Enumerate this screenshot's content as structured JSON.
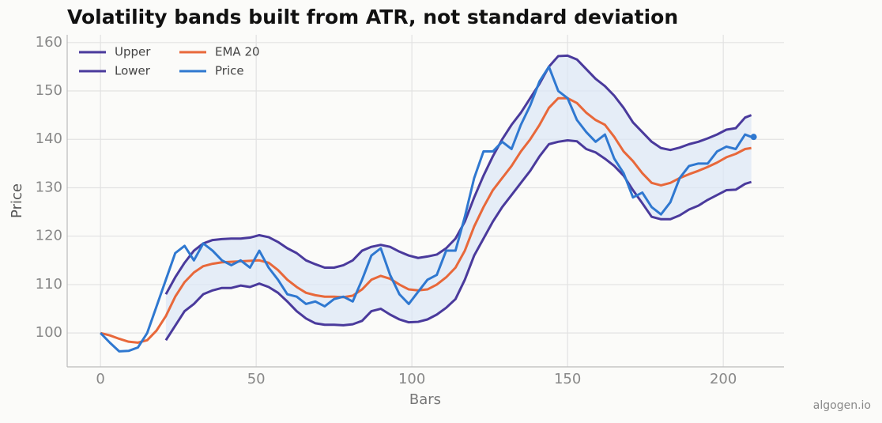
{
  "chart_data": {
    "type": "line",
    "title": "Volatility bands built from ATR, not standard deviation",
    "x_label": "Bars",
    "y_label": "Price",
    "watermark": "algogen.io",
    "xlim": [
      -10.7,
      219.5
    ],
    "ylim": [
      93,
      161.6
    ],
    "xticks": [
      0,
      50,
      100,
      150,
      200
    ],
    "yticks": [
      100,
      110,
      120,
      130,
      140,
      150,
      160
    ],
    "grid": true,
    "legend": "upper left",
    "band_color": "#dce7f7",
    "x": [
      0,
      3,
      6,
      9,
      12,
      15,
      18,
      21,
      24,
      27,
      30,
      33,
      36,
      39,
      42,
      45,
      48,
      51,
      54,
      57,
      60,
      63,
      66,
      69,
      72,
      75,
      78,
      81,
      84,
      87,
      90,
      93,
      96,
      99,
      102,
      105,
      108,
      111,
      114,
      117,
      120,
      123,
      126,
      129,
      132,
      135,
      138,
      141,
      144,
      147,
      150,
      153,
      156,
      159,
      162,
      165,
      168,
      171,
      174,
      177,
      180,
      183,
      186,
      189,
      192,
      195,
      198,
      201,
      204,
      207,
      209
    ],
    "series": [
      {
        "name": "Upper",
        "color": "#4a3a9c",
        "values": [
          null,
          null,
          null,
          null,
          null,
          null,
          null,
          108,
          111.5,
          114.5,
          117,
          118.5,
          119.2,
          119.4,
          119.5,
          119.5,
          119.7,
          120.2,
          119.8,
          118.8,
          117.5,
          116.5,
          115,
          114.2,
          113.5,
          113.5,
          114,
          115,
          117,
          117.8,
          118.2,
          117.8,
          116.8,
          116,
          115.5,
          115.8,
          116.2,
          117.5,
          119.5,
          123,
          128,
          132.5,
          136.5,
          140,
          143,
          145.5,
          148.5,
          151.5,
          155,
          157.2,
          157.3,
          156.5,
          154.5,
          152.5,
          151,
          149,
          146.5,
          143.5,
          141.5,
          139.5,
          138.2,
          137.8,
          138.3,
          139,
          139.5,
          140.2,
          141,
          142,
          142.3,
          144.5,
          145
        ]
      },
      {
        "name": "Lower",
        "color": "#4a3a9c",
        "values": [
          null,
          null,
          null,
          null,
          null,
          null,
          null,
          98.5,
          101.5,
          104.5,
          106,
          108,
          108.8,
          109.3,
          109.3,
          109.8,
          109.5,
          110.2,
          109.5,
          108.3,
          106.5,
          104.5,
          103,
          102,
          101.7,
          101.7,
          101.6,
          101.8,
          102.5,
          104.5,
          105,
          103.8,
          102.8,
          102.2,
          102.3,
          102.8,
          103.8,
          105.2,
          107,
          111,
          116,
          119.5,
          123,
          126,
          128.5,
          131,
          133.5,
          136.5,
          139,
          139.5,
          139.8,
          139.6,
          138,
          137.3,
          136,
          134.5,
          132.5,
          129.5,
          126.8,
          124,
          123.5,
          123.5,
          124.3,
          125.5,
          126.3,
          127.5,
          128.5,
          129.5,
          129.6,
          130.8,
          131.2
        ]
      },
      {
        "name": "EMA 20",
        "color": "#e8683a",
        "values": [
          100,
          99.5,
          98.8,
          98.2,
          98,
          98.5,
          100.5,
          103.5,
          107.5,
          110.5,
          112.5,
          113.8,
          114.3,
          114.6,
          114.7,
          114.8,
          114.9,
          115,
          114.5,
          113,
          111,
          109.5,
          108.3,
          107.8,
          107.5,
          107.5,
          107.4,
          107.7,
          109,
          111,
          111.8,
          111.2,
          110,
          109,
          108.8,
          109,
          110,
          111.5,
          113.5,
          117,
          122,
          126,
          129.5,
          132,
          134.5,
          137.5,
          140,
          143,
          146.5,
          148.5,
          148.5,
          147.5,
          145.5,
          144,
          143,
          140.5,
          137.5,
          135.5,
          133,
          131,
          130.5,
          131,
          132,
          132.8,
          133.5,
          134.3,
          135.2,
          136.3,
          137,
          138,
          138.2
        ]
      },
      {
        "name": "Price",
        "color": "#2f78d0",
        "values": [
          100,
          98,
          96.2,
          96.3,
          97,
          100,
          105.5,
          111,
          116.5,
          118,
          115,
          118.5,
          117,
          115,
          114,
          115,
          113.5,
          117,
          113.5,
          111,
          108,
          107.5,
          106,
          106.5,
          105.5,
          107,
          107.5,
          106.5,
          111,
          116,
          117.5,
          112,
          108,
          106,
          108.5,
          111,
          112,
          117,
          117,
          124,
          132,
          137.5,
          137.5,
          139.5,
          138,
          143,
          147,
          152,
          155,
          150,
          148.5,
          144,
          141.5,
          139.5,
          141,
          136,
          133,
          128,
          129,
          126,
          124.5,
          127,
          132,
          134.5,
          135,
          135,
          137.5,
          138.5,
          138,
          141,
          140.5
        ]
      }
    ]
  }
}
